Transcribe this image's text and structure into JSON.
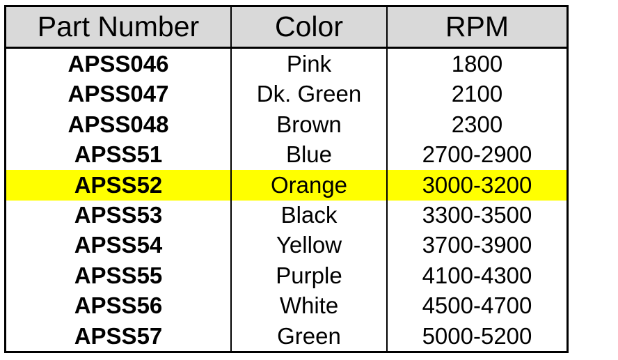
{
  "table": {
    "headers": [
      "Part Number",
      "Color",
      "RPM"
    ],
    "highlight_color": "#ffff00",
    "header_bg": "#d9d9d9",
    "rows": [
      {
        "part": "APSS046",
        "color": "Pink",
        "rpm": "1800",
        "highlighted": false
      },
      {
        "part": "APSS047",
        "color": "Dk. Green",
        "rpm": "2100",
        "highlighted": false
      },
      {
        "part": "APSS048",
        "color": "Brown",
        "rpm": "2300",
        "highlighted": false
      },
      {
        "part": "APSS51",
        "color": "Blue",
        "rpm": "2700-2900",
        "highlighted": false
      },
      {
        "part": "APSS52",
        "color": "Orange",
        "rpm": "3000-3200",
        "highlighted": true
      },
      {
        "part": "APSS53",
        "color": "Black",
        "rpm": "3300-3500",
        "highlighted": false
      },
      {
        "part": "APSS54",
        "color": "Yellow",
        "rpm": "3700-3900",
        "highlighted": false
      },
      {
        "part": "APSS55",
        "color": "Purple",
        "rpm": "4100-4300",
        "highlighted": false
      },
      {
        "part": "APSS56",
        "color": "White",
        "rpm": "4500-4700",
        "highlighted": false
      },
      {
        "part": "APSS57",
        "color": "Green",
        "rpm": "5000-5200",
        "highlighted": false
      }
    ]
  }
}
